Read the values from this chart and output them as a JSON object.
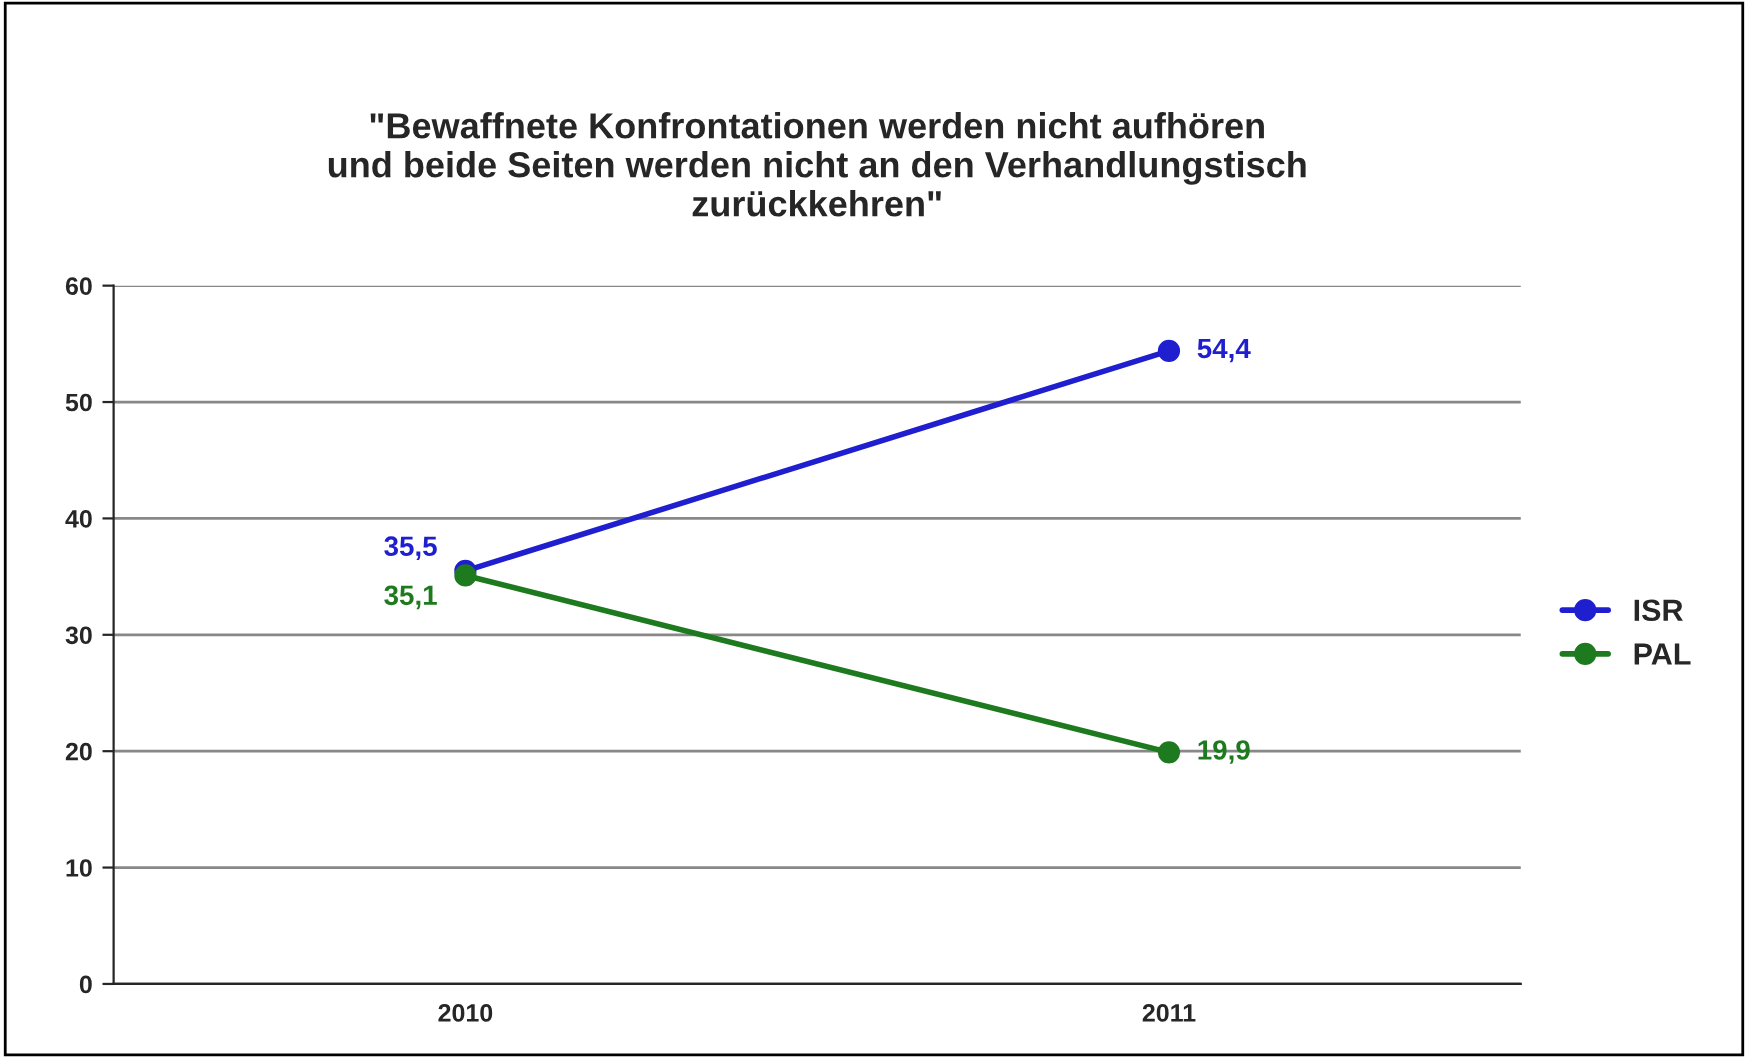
{
  "chart_data": {
    "type": "line",
    "title": "\"Bewaffnete Konfrontationen werden nicht aufhören\nund beide Seiten werden nicht an den Verhandlungstisch\nzurückkehren\"",
    "categories": [
      "2010",
      "2011"
    ],
    "series": [
      {
        "name": "ISR",
        "color": "#1f1fd0",
        "values": [
          35.5,
          54.4
        ],
        "value_labels": [
          "35,5",
          "54,4"
        ]
      },
      {
        "name": "PAL",
        "color": "#1e7a1e",
        "values": [
          35.1,
          19.9
        ],
        "value_labels": [
          "35,1",
          "19,9"
        ]
      }
    ],
    "ylim": [
      0,
      60
    ],
    "yticks": [
      0,
      10,
      20,
      30,
      40,
      50,
      60
    ],
    "grid": "y",
    "legend": "right",
    "marker": "circle",
    "line_style": "solid"
  }
}
